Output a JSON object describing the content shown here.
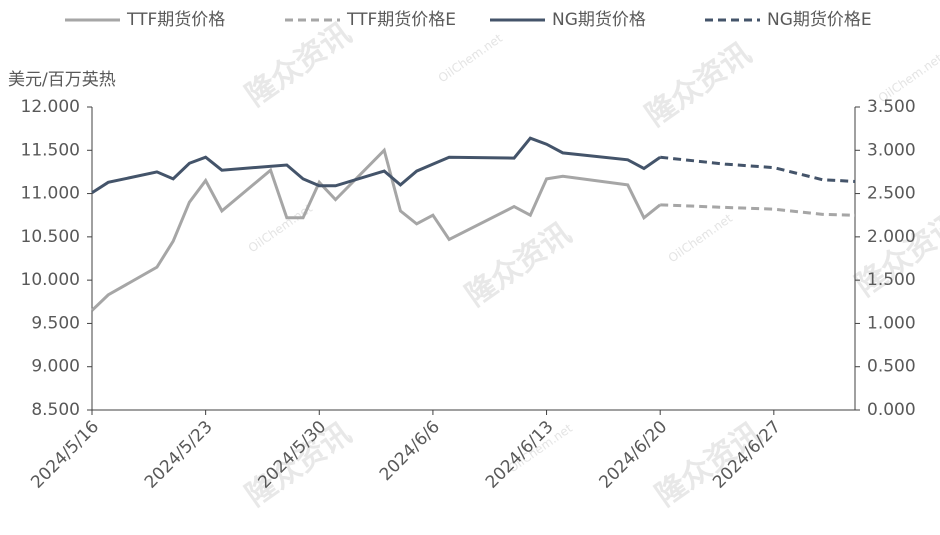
{
  "chart_data": {
    "type": "line",
    "y_label": "美元/百万英热",
    "watermark": "隆众资讯",
    "watermark_url": "OilChem.net",
    "xlim": [
      "2024/5/16",
      "2024/7/2"
    ],
    "xticks": [
      "2024/5/16",
      "2024/5/23",
      "2024/5/30",
      "2024/6/6",
      "2024/6/13",
      "2024/6/20",
      "2024/6/27"
    ],
    "ylim": [
      8.5,
      12
    ],
    "yticks": [
      {
        "value": 8.5,
        "label": "8.500"
      },
      {
        "value": 9,
        "label": "9.000"
      },
      {
        "value": 9.5,
        "label": "9.500"
      },
      {
        "value": 10,
        "label": "10.000"
      },
      {
        "value": 10.5,
        "label": "10.500"
      },
      {
        "value": 11,
        "label": "11.000"
      },
      {
        "value": 11.5,
        "label": "11.500"
      },
      {
        "value": 12,
        "label": "12.000"
      }
    ],
    "y2lim": [
      0,
      3.5
    ],
    "y2ticks": [
      {
        "value": 0,
        "label": "0.000"
      },
      {
        "value": 0.5,
        "label": "0.500"
      },
      {
        "value": 1,
        "label": "1.000"
      },
      {
        "value": 1.5,
        "label": "1.500"
      },
      {
        "value": 2,
        "label": "2.000"
      },
      {
        "value": 2.5,
        "label": "2.500"
      },
      {
        "value": 3,
        "label": "3.000"
      },
      {
        "value": 3.5,
        "label": "3.500"
      }
    ],
    "series": [
      {
        "name": "TTF期货价格",
        "color": "#a6a6a6",
        "dashed": false,
        "x": [
          "2024/5/16",
          "2024/5/17",
          "2024/5/20",
          "2024/5/21",
          "2024/5/22",
          "2024/5/23",
          "2024/5/24",
          "2024/5/27",
          "2024/5/28",
          "2024/5/29",
          "2024/5/30",
          "2024/5/31",
          "2024/6/3",
          "2024/6/4",
          "2024/6/5",
          "2024/6/6",
          "2024/6/7",
          "2024/6/11",
          "2024/6/12",
          "2024/6/13",
          "2024/6/14",
          "2024/6/18",
          "2024/6/19",
          "2024/6/20"
        ],
        "values": [
          9.65,
          9.83,
          10.15,
          10.45,
          10.9,
          11.15,
          10.8,
          11.27,
          10.72,
          10.72,
          11.13,
          10.93,
          11.5,
          10.8,
          10.65,
          10.75,
          10.47,
          10.85,
          10.75,
          11.17,
          11.2,
          11.1,
          10.72,
          10.87
        ]
      },
      {
        "name": "TTF期货价格E",
        "color": "#a6a6a6",
        "dashed": true,
        "x": [
          "2024/6/20",
          "2024/6/24",
          "2024/6/27",
          "2024/6/30",
          "2024/7/2"
        ],
        "values": [
          10.87,
          10.84,
          10.82,
          10.76,
          10.75
        ]
      },
      {
        "name": "NG期货价格",
        "color": "#44546a",
        "dashed": false,
        "axis": "y2",
        "x": [
          "2024/5/16",
          "2024/5/17",
          "2024/5/20",
          "2024/5/21",
          "2024/5/22",
          "2024/5/23",
          "2024/5/24",
          "2024/5/28",
          "2024/5/29",
          "2024/5/30",
          "2024/5/31",
          "2024/6/3",
          "2024/6/4",
          "2024/6/5",
          "2024/6/6",
          "2024/6/7",
          "2024/6/11",
          "2024/6/12",
          "2024/6/13",
          "2024/6/14",
          "2024/6/18",
          "2024/6/19",
          "2024/6/20"
        ],
        "values": [
          2.51,
          2.63,
          2.75,
          2.67,
          2.85,
          2.92,
          2.77,
          2.83,
          2.67,
          2.59,
          2.59,
          2.76,
          2.6,
          2.76,
          2.84,
          2.92,
          2.91,
          3.14,
          3.07,
          2.97,
          2.89,
          2.79,
          2.92
        ]
      },
      {
        "name": "NG期货价格E",
        "color": "#44546a",
        "dashed": true,
        "axis": "y2",
        "x": [
          "2024/6/20",
          "2024/6/24",
          "2024/6/27",
          "2024/6/30",
          "2024/7/2"
        ],
        "values": [
          2.92,
          2.84,
          2.8,
          2.66,
          2.64
        ]
      }
    ]
  }
}
